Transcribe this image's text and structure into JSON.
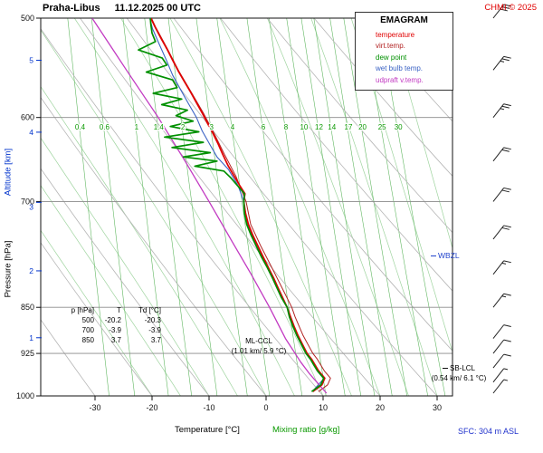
{
  "header": {
    "station": "Praha-Libus",
    "datetime": "11.12.2025 00 UTC",
    "copyright": "CHMI © 2025"
  },
  "footer": {
    "sfc": "SFC: 304 m ASL",
    "xlabel_temp": "Temperature [°C]",
    "xlabel_mix": "Mixing ratio [g/kg]"
  },
  "axes": {
    "pressure_label": "Pressure [hPa]",
    "altitude_label": "Altitude [km]",
    "pressure_ticks": [
      500,
      600,
      700,
      850,
      925,
      1000
    ],
    "pressure_gridlines": [
      600,
      700,
      850,
      925
    ],
    "altitude_ticks_km": [
      1,
      2,
      3,
      4,
      5
    ],
    "temp_ticks": [
      -30,
      -20,
      -10,
      0,
      10,
      20,
      30
    ]
  },
  "legend": {
    "title": "EMAGRAM",
    "items": [
      {
        "label": "temperature",
        "color": "#e00000"
      },
      {
        "label": "virt.temp.",
        "color": "#b22222"
      },
      {
        "label": "dew point",
        "color": "#009000"
      },
      {
        "label": "wet bulb temp.",
        "color": "#3a62c4"
      },
      {
        "label": "udpraft v.temp.",
        "color": "#c23ac2"
      }
    ]
  },
  "table": {
    "headers": [
      "p [hPa]",
      "T",
      "Td [°C]"
    ],
    "rows": [
      [
        "500",
        "-20.2",
        "-20.3"
      ],
      [
        "700",
        "-3.9",
        "-3.9"
      ],
      [
        "850",
        "3.7",
        "3.7"
      ]
    ]
  },
  "annotations": {
    "mlccl_line1": "ML-CCL",
    "mlccl_line2": "(1.01 km/ 5.9 °C)",
    "sblcl_line1": "SB-LCL",
    "sblcl_line2": "(0.54 km/ 6.1 °C)",
    "wbzl": "WBZL"
  },
  "chart_data": {
    "type": "line",
    "diagram": "emagram-sounding",
    "pressure_axis_hpa": {
      "top": 500,
      "bottom": 1000,
      "scale": "log"
    },
    "temp_axis_c": {
      "min": -39,
      "max": 32
    },
    "mixing_ratio_lines_gkg": [
      0.4,
      0.6,
      1,
      1.4,
      2,
      3,
      4,
      6,
      8,
      10,
      12,
      14,
      17,
      20,
      25,
      30
    ],
    "dry_adiabats_theta_c": [
      -40,
      -30,
      -20,
      -10,
      0,
      10,
      20,
      30,
      40,
      50,
      60,
      70,
      80,
      90,
      100
    ],
    "moist_adiabats_thetaw_c": [
      -20,
      -15,
      -10,
      -5,
      0,
      5,
      10,
      15,
      20,
      25,
      30,
      35,
      40
    ],
    "series": {
      "temperature": [
        [
          992,
          8.2
        ],
        [
          980,
          9.8
        ],
        [
          968,
          10.3
        ],
        [
          955,
          9.2
        ],
        [
          945,
          8.6
        ],
        [
          935,
          8.0
        ],
        [
          925,
          7.2
        ],
        [
          910,
          6.4
        ],
        [
          895,
          5.6
        ],
        [
          880,
          4.9
        ],
        [
          865,
          4.3
        ],
        [
          850,
          3.7
        ],
        [
          835,
          2.9
        ],
        [
          820,
          2.1
        ],
        [
          805,
          1.3
        ],
        [
          790,
          0.4
        ],
        [
          775,
          -0.5
        ],
        [
          760,
          -1.4
        ],
        [
          745,
          -2.3
        ],
        [
          730,
          -3.1
        ],
        [
          715,
          -3.6
        ],
        [
          700,
          -3.9
        ],
        [
          690,
          -3.7
        ],
        [
          680,
          -4.6
        ],
        [
          668,
          -5.6
        ],
        [
          655,
          -6.7
        ],
        [
          642,
          -7.6
        ],
        [
          630,
          -8.4
        ],
        [
          618,
          -9.3
        ],
        [
          606,
          -10.3
        ],
        [
          595,
          -11.2
        ],
        [
          584,
          -12.2
        ],
        [
          573,
          -13.2
        ],
        [
          562,
          -14.3
        ],
        [
          551,
          -15.4
        ],
        [
          540,
          -16.4
        ],
        [
          529,
          -17.4
        ],
        [
          518,
          -18.5
        ],
        [
          508,
          -19.5
        ],
        [
          500,
          -20.2
        ]
      ],
      "virtual_temperature": [
        [
          992,
          9.2
        ],
        [
          980,
          10.8
        ],
        [
          968,
          11.3
        ],
        [
          955,
          10.2
        ],
        [
          935,
          9.0
        ],
        [
          925,
          8.2
        ],
        [
          895,
          6.5
        ],
        [
          865,
          5.1
        ],
        [
          850,
          4.5
        ],
        [
          820,
          2.8
        ],
        [
          790,
          1.0
        ],
        [
          760,
          -0.9
        ],
        [
          730,
          -2.7
        ],
        [
          700,
          -3.5
        ],
        [
          668,
          -5.3
        ],
        [
          642,
          -7.3
        ],
        [
          618,
          -9.1
        ],
        [
          595,
          -11.0
        ],
        [
          573,
          -13.1
        ],
        [
          551,
          -15.3
        ],
        [
          529,
          -17.3
        ],
        [
          508,
          -19.4
        ],
        [
          500,
          -20.1
        ]
      ],
      "dew_point": [
        [
          992,
          8.0
        ],
        [
          980,
          9.6
        ],
        [
          968,
          10.1
        ],
        [
          955,
          9.0
        ],
        [
          945,
          8.4
        ],
        [
          935,
          7.8
        ],
        [
          925,
          7.0
        ],
        [
          910,
          6.2
        ],
        [
          895,
          5.4
        ],
        [
          880,
          4.7
        ],
        [
          865,
          4.1
        ],
        [
          850,
          3.7
        ],
        [
          835,
          2.7
        ],
        [
          820,
          1.9
        ],
        [
          805,
          1.1
        ],
        [
          790,
          0.2
        ],
        [
          775,
          -0.8
        ],
        [
          760,
          -1.7
        ],
        [
          745,
          -2.6
        ],
        [
          730,
          -3.4
        ],
        [
          715,
          -3.8
        ],
        [
          700,
          -3.9
        ],
        [
          690,
          -3.8
        ],
        [
          680,
          -5.0
        ],
        [
          670,
          -6.2
        ],
        [
          662,
          -7.4
        ],
        [
          656,
          -12.5
        ],
        [
          650,
          -8.6
        ],
        [
          645,
          -14.5
        ],
        [
          640,
          -9.8
        ],
        [
          634,
          -16.5
        ],
        [
          628,
          -11.0
        ],
        [
          622,
          -17.8
        ],
        [
          616,
          -11.8
        ],
        [
          610,
          -16.8
        ],
        [
          604,
          -12.8
        ],
        [
          598,
          -15.8
        ],
        [
          592,
          -13.8
        ],
        [
          586,
          -18.3
        ],
        [
          580,
          -14.8
        ],
        [
          574,
          -19.8
        ],
        [
          568,
          -15.6
        ],
        [
          560,
          -16.4
        ],
        [
          552,
          -21.0
        ],
        [
          545,
          -17.4
        ],
        [
          538,
          -18.2
        ],
        [
          530,
          -22.4
        ],
        [
          522,
          -19.4
        ],
        [
          514,
          -20.0
        ],
        [
          506,
          -20.2
        ],
        [
          500,
          -20.3
        ]
      ],
      "wet_bulb": [
        [
          992,
          8.1
        ],
        [
          968,
          10.2
        ],
        [
          945,
          8.5
        ],
        [
          925,
          7.1
        ],
        [
          895,
          5.5
        ],
        [
          865,
          4.2
        ],
        [
          850,
          3.7
        ],
        [
          820,
          2.0
        ],
        [
          790,
          0.3
        ],
        [
          760,
          -1.6
        ],
        [
          730,
          -3.3
        ],
        [
          700,
          -3.9
        ],
        [
          680,
          -4.9
        ],
        [
          660,
          -6.6
        ],
        [
          645,
          -8.6
        ],
        [
          630,
          -9.9
        ],
        [
          615,
          -11.2
        ],
        [
          600,
          -12.2
        ],
        [
          585,
          -13.6
        ],
        [
          570,
          -15.0
        ],
        [
          555,
          -16.4
        ],
        [
          540,
          -17.5
        ],
        [
          525,
          -18.7
        ],
        [
          510,
          -19.9
        ],
        [
          500,
          -20.4
        ]
      ],
      "updraft_virtual_temperature": [
        [
          995,
          10.6
        ],
        [
          960,
          7.6
        ],
        [
          940,
          6.1
        ],
        [
          900,
          3.4
        ],
        [
          850,
          0.6
        ],
        [
          800,
          -2.6
        ],
        [
          750,
          -6.2
        ],
        [
          700,
          -10.0
        ],
        [
          650,
          -14.2
        ],
        [
          600,
          -18.9
        ],
        [
          550,
          -24.5
        ],
        [
          500,
          -30.5
        ]
      ]
    },
    "wind_barbs": [
      {
        "p": 500,
        "speed_kt": 30
      },
      {
        "p": 550,
        "speed_kt": 25
      },
      {
        "p": 600,
        "speed_kt": 25
      },
      {
        "p": 650,
        "speed_kt": 20
      },
      {
        "p": 700,
        "speed_kt": 20
      },
      {
        "p": 750,
        "speed_kt": 20
      },
      {
        "p": 800,
        "speed_kt": 15
      },
      {
        "p": 850,
        "speed_kt": 15
      },
      {
        "p": 900,
        "speed_kt": 10
      },
      {
        "p": 925,
        "speed_kt": 10
      },
      {
        "p": 950,
        "speed_kt": 10
      },
      {
        "p": 975,
        "speed_kt": 5
      },
      {
        "p": 995,
        "speed_kt": 5
      }
    ]
  }
}
